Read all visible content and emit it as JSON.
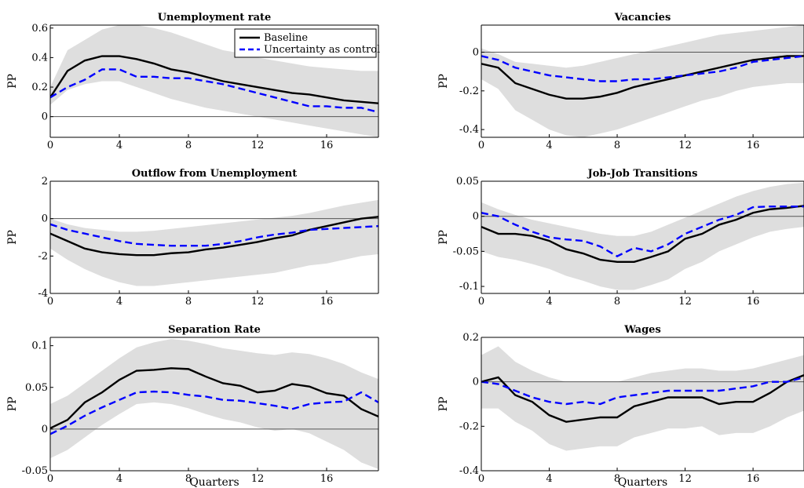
{
  "figure": {
    "legend": {
      "entries": [
        {
          "label": "Baseline",
          "color": "#000000",
          "style": "solid"
        },
        {
          "label": "Uncertainty as control",
          "color": "#0000ff",
          "style": "dashed"
        }
      ],
      "placement": "top-right of first panel"
    },
    "colors": {
      "baseline": "#000000",
      "uncertainty": "#0000ff",
      "band": "#dedede",
      "zero_line": "#555555"
    }
  },
  "chart_data": [
    {
      "id": "unemployment",
      "type": "line",
      "title": "Unemployment rate",
      "ylabel": "PP",
      "xlabel": "",
      "xlim": [
        0,
        19
      ],
      "ylim": [
        -0.14,
        0.62
      ],
      "xticks": [
        "0",
        "4",
        "8",
        "12",
        "16"
      ],
      "xtick_values": [
        0,
        4,
        8,
        12,
        16
      ],
      "yticks": [
        "0",
        "0.2",
        "0.4",
        "0.6"
      ],
      "ytick_values": [
        0,
        0.2,
        0.4,
        0.6
      ],
      "x": [
        0,
        1,
        2,
        3,
        4,
        5,
        6,
        7,
        8,
        9,
        10,
        11,
        12,
        13,
        14,
        15,
        16,
        17,
        18,
        19
      ],
      "series": [
        {
          "name": "Baseline",
          "values": [
            0.13,
            0.31,
            0.38,
            0.41,
            0.41,
            0.39,
            0.36,
            0.32,
            0.3,
            0.27,
            0.24,
            0.22,
            0.2,
            0.18,
            0.16,
            0.15,
            0.13,
            0.11,
            0.1,
            0.09
          ]
        },
        {
          "name": "Uncertainty as control",
          "values": [
            0.13,
            0.2,
            0.25,
            0.32,
            0.32,
            0.27,
            0.27,
            0.26,
            0.26,
            0.24,
            0.22,
            0.19,
            0.16,
            0.13,
            0.1,
            0.07,
            0.07,
            0.06,
            0.06,
            0.03
          ]
        }
      ],
      "band": {
        "upper": [
          0.2,
          0.45,
          0.52,
          0.59,
          0.62,
          0.62,
          0.6,
          0.57,
          0.53,
          0.49,
          0.45,
          0.43,
          0.4,
          0.38,
          0.36,
          0.34,
          0.33,
          0.32,
          0.31,
          0.31
        ],
        "lower": [
          0.08,
          0.18,
          0.22,
          0.24,
          0.24,
          0.2,
          0.16,
          0.12,
          0.09,
          0.06,
          0.04,
          0.02,
          0.0,
          -0.02,
          -0.04,
          -0.06,
          -0.08,
          -0.1,
          -0.12,
          -0.14
        ]
      },
      "legend": true
    },
    {
      "id": "vacancies",
      "type": "line",
      "title": "Vacancies",
      "ylabel": "PP",
      "xlabel": "",
      "xlim": [
        0,
        19
      ],
      "ylim": [
        -0.44,
        0.14
      ],
      "xticks": [
        "0",
        "4",
        "8",
        "12",
        "16"
      ],
      "xtick_values": [
        0,
        4,
        8,
        12,
        16
      ],
      "yticks": [
        "0",
        "-0.2",
        "-0.4"
      ],
      "ytick_values": [
        0,
        -0.2,
        -0.4
      ],
      "x": [
        0,
        1,
        2,
        3,
        4,
        5,
        6,
        7,
        8,
        9,
        10,
        11,
        12,
        13,
        14,
        15,
        16,
        17,
        18,
        19
      ],
      "series": [
        {
          "name": "Baseline",
          "values": [
            -0.06,
            -0.08,
            -0.16,
            -0.19,
            -0.22,
            -0.24,
            -0.24,
            -0.23,
            -0.21,
            -0.18,
            -0.16,
            -0.14,
            -0.12,
            -0.1,
            -0.08,
            -0.06,
            -0.04,
            -0.03,
            -0.02,
            -0.02
          ]
        },
        {
          "name": "Uncertainty as control",
          "values": [
            -0.02,
            -0.04,
            -0.08,
            -0.1,
            -0.12,
            -0.13,
            -0.14,
            -0.15,
            -0.15,
            -0.14,
            -0.14,
            -0.13,
            -0.12,
            -0.11,
            -0.1,
            -0.08,
            -0.05,
            -0.04,
            -0.03,
            -0.02
          ]
        }
      ],
      "band": {
        "upper": [
          0.02,
          -0.01,
          -0.05,
          -0.06,
          -0.07,
          -0.08,
          -0.07,
          -0.05,
          -0.03,
          -0.01,
          0.01,
          0.03,
          0.05,
          0.07,
          0.09,
          0.1,
          0.11,
          0.12,
          0.13,
          0.14
        ],
        "lower": [
          -0.14,
          -0.19,
          -0.3,
          -0.35,
          -0.4,
          -0.43,
          -0.44,
          -0.42,
          -0.4,
          -0.37,
          -0.34,
          -0.31,
          -0.28,
          -0.25,
          -0.23,
          -0.2,
          -0.18,
          -0.17,
          -0.16,
          -0.16
        ]
      },
      "legend": false
    },
    {
      "id": "outflow",
      "type": "line",
      "title": "Outflow from Unemployment",
      "ylabel": "PP",
      "xlabel": "",
      "xlim": [
        0,
        19
      ],
      "ylim": [
        -4,
        2
      ],
      "xticks": [
        "0",
        "4",
        "8",
        "12",
        "16"
      ],
      "xtick_values": [
        0,
        4,
        8,
        12,
        16
      ],
      "yticks": [
        "2",
        "0",
        "-2",
        "-4"
      ],
      "ytick_values": [
        2,
        0,
        -2,
        -4
      ],
      "x": [
        0,
        1,
        2,
        3,
        4,
        5,
        6,
        7,
        8,
        9,
        10,
        11,
        12,
        13,
        14,
        15,
        16,
        17,
        18,
        19
      ],
      "series": [
        {
          "name": "Baseline",
          "values": [
            -0.8,
            -1.2,
            -1.6,
            -1.8,
            -1.9,
            -1.95,
            -1.95,
            -1.85,
            -1.8,
            -1.65,
            -1.55,
            -1.4,
            -1.25,
            -1.05,
            -0.9,
            -0.6,
            -0.4,
            -0.2,
            0.0,
            0.1
          ]
        },
        {
          "name": "Uncertainty as control",
          "values": [
            -0.3,
            -0.6,
            -0.8,
            -1.0,
            -1.2,
            -1.35,
            -1.4,
            -1.45,
            -1.45,
            -1.45,
            -1.35,
            -1.2,
            -1.0,
            -0.85,
            -0.75,
            -0.6,
            -0.55,
            -0.5,
            -0.45,
            -0.4
          ]
        }
      ],
      "band": {
        "upper": [
          0.0,
          -0.3,
          -0.5,
          -0.6,
          -0.7,
          -0.7,
          -0.65,
          -0.55,
          -0.45,
          -0.35,
          -0.25,
          -0.15,
          -0.05,
          0.05,
          0.15,
          0.3,
          0.5,
          0.7,
          0.85,
          1.0
        ],
        "lower": [
          -1.6,
          -2.2,
          -2.7,
          -3.1,
          -3.4,
          -3.6,
          -3.6,
          -3.5,
          -3.4,
          -3.3,
          -3.2,
          -3.1,
          -3.0,
          -2.9,
          -2.7,
          -2.5,
          -2.4,
          -2.2,
          -2.0,
          -1.9
        ]
      },
      "legend": false
    },
    {
      "id": "jobjob",
      "type": "line",
      "title": "Job-Job Transitions",
      "ylabel": "PP",
      "xlabel": "",
      "xlim": [
        0,
        19
      ],
      "ylim": [
        -0.11,
        0.05
      ],
      "xticks": [
        "0",
        "4",
        "8",
        "12",
        "16"
      ],
      "xtick_values": [
        0,
        4,
        8,
        12,
        16
      ],
      "yticks": [
        "0.05",
        "0",
        "-0.05",
        "-0.1"
      ],
      "ytick_values": [
        0.05,
        0,
        -0.05,
        -0.1
      ],
      "x": [
        0,
        1,
        2,
        3,
        4,
        5,
        6,
        7,
        8,
        9,
        10,
        11,
        12,
        13,
        14,
        15,
        16,
        17,
        18,
        19
      ],
      "series": [
        {
          "name": "Baseline",
          "values": [
            -0.015,
            -0.025,
            -0.025,
            -0.028,
            -0.035,
            -0.047,
            -0.053,
            -0.062,
            -0.065,
            -0.065,
            -0.058,
            -0.05,
            -0.032,
            -0.025,
            -0.012,
            -0.005,
            0.005,
            0.01,
            0.012,
            0.015
          ]
        },
        {
          "name": "Uncertainty as control",
          "values": [
            0.005,
            0.0,
            -0.012,
            -0.022,
            -0.03,
            -0.033,
            -0.035,
            -0.043,
            -0.057,
            -0.045,
            -0.05,
            -0.04,
            -0.025,
            -0.015,
            -0.005,
            0.002,
            0.013,
            0.014,
            0.014,
            0.014
          ]
        }
      ],
      "band": {
        "upper": [
          0.02,
          0.01,
          0.002,
          -0.005,
          -0.01,
          -0.015,
          -0.02,
          -0.025,
          -0.028,
          -0.028,
          -0.022,
          -0.012,
          -0.002,
          0.008,
          0.018,
          0.028,
          0.036,
          0.042,
          0.046,
          0.048
        ],
        "lower": [
          -0.05,
          -0.058,
          -0.062,
          -0.068,
          -0.075,
          -0.085,
          -0.092,
          -0.1,
          -0.105,
          -0.105,
          -0.098,
          -0.09,
          -0.075,
          -0.065,
          -0.05,
          -0.04,
          -0.03,
          -0.022,
          -0.018,
          -0.015
        ]
      },
      "legend": false
    },
    {
      "id": "separation",
      "type": "line",
      "title": "Separation Rate",
      "ylabel": "PP",
      "xlabel": "Quarters",
      "xlim": [
        0,
        19
      ],
      "ylim": [
        -0.05,
        0.11
      ],
      "xticks": [
        "0",
        "4",
        "8",
        "12",
        "16"
      ],
      "xtick_values": [
        0,
        4,
        8,
        12,
        16
      ],
      "yticks": [
        "0.1",
        "0.05",
        "0",
        "-0.05"
      ],
      "ytick_values": [
        0.1,
        0.05,
        0,
        -0.05
      ],
      "x": [
        0,
        1,
        2,
        3,
        4,
        5,
        6,
        7,
        8,
        9,
        10,
        11,
        12,
        13,
        14,
        15,
        16,
        17,
        18,
        19
      ],
      "series": [
        {
          "name": "Baseline",
          "values": [
            0.001,
            0.011,
            0.032,
            0.044,
            0.059,
            0.07,
            0.071,
            0.073,
            0.072,
            0.063,
            0.055,
            0.052,
            0.044,
            0.046,
            0.054,
            0.051,
            0.043,
            0.04,
            0.024,
            0.015
          ]
        },
        {
          "name": "Uncertainty as control",
          "values": [
            -0.006,
            0.004,
            0.016,
            0.026,
            0.035,
            0.044,
            0.045,
            0.044,
            0.041,
            0.039,
            0.035,
            0.034,
            0.031,
            0.028,
            0.024,
            0.03,
            0.032,
            0.033,
            0.044,
            0.032
          ]
        }
      ],
      "band": {
        "upper": [
          0.03,
          0.04,
          0.055,
          0.07,
          0.085,
          0.098,
          0.104,
          0.108,
          0.106,
          0.102,
          0.097,
          0.094,
          0.091,
          0.089,
          0.092,
          0.09,
          0.085,
          0.078,
          0.068,
          0.06
        ],
        "lower": [
          -0.035,
          -0.025,
          -0.01,
          0.005,
          0.018,
          0.03,
          0.032,
          0.03,
          0.025,
          0.018,
          0.012,
          0.008,
          0.002,
          -0.002,
          0.0,
          -0.005,
          -0.015,
          -0.025,
          -0.04,
          -0.048
        ]
      },
      "legend": false
    },
    {
      "id": "wages",
      "type": "line",
      "title": "Wages",
      "ylabel": "PP",
      "xlabel": "Quarters",
      "xlim": [
        0,
        19
      ],
      "ylim": [
        -0.4,
        0.2
      ],
      "xticks": [
        "0",
        "4",
        "8",
        "12",
        "16"
      ],
      "xtick_values": [
        0,
        4,
        8,
        12,
        16
      ],
      "yticks": [
        "0.2",
        "0",
        "-0.2",
        "-0.4"
      ],
      "ytick_values": [
        0.2,
        0,
        -0.2,
        -0.4
      ],
      "x": [
        0,
        1,
        2,
        3,
        4,
        5,
        6,
        7,
        8,
        9,
        10,
        11,
        12,
        13,
        14,
        15,
        16,
        17,
        18,
        19
      ],
      "series": [
        {
          "name": "Baseline",
          "values": [
            0.0,
            0.02,
            -0.06,
            -0.09,
            -0.15,
            -0.18,
            -0.17,
            -0.16,
            -0.16,
            -0.11,
            -0.09,
            -0.07,
            -0.07,
            -0.07,
            -0.1,
            -0.09,
            -0.09,
            -0.05,
            0.0,
            0.03
          ]
        },
        {
          "name": "Uncertainty as control",
          "values": [
            0.0,
            -0.01,
            -0.04,
            -0.07,
            -0.09,
            -0.1,
            -0.09,
            -0.1,
            -0.07,
            -0.06,
            -0.05,
            -0.04,
            -0.04,
            -0.04,
            -0.04,
            -0.03,
            -0.02,
            0.0,
            0.0,
            0.02
          ]
        }
      ],
      "band": {
        "upper": [
          0.12,
          0.16,
          0.09,
          0.05,
          0.02,
          0.0,
          0.0,
          0.0,
          0.0,
          0.02,
          0.04,
          0.05,
          0.06,
          0.06,
          0.05,
          0.05,
          0.06,
          0.08,
          0.1,
          0.12
        ],
        "lower": [
          -0.12,
          -0.12,
          -0.18,
          -0.22,
          -0.28,
          -0.31,
          -0.3,
          -0.29,
          -0.29,
          -0.25,
          -0.23,
          -0.21,
          -0.21,
          -0.2,
          -0.24,
          -0.23,
          -0.23,
          -0.2,
          -0.16,
          -0.13
        ]
      },
      "legend": false
    }
  ]
}
